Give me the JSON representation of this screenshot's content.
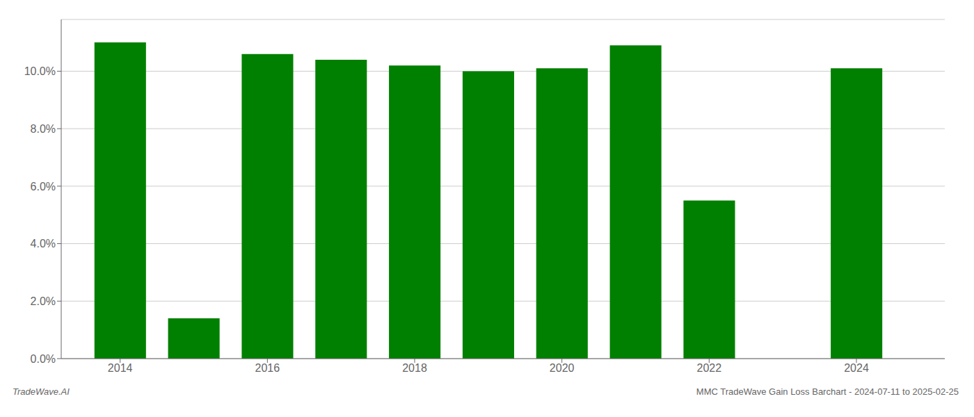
{
  "chart_data": {
    "type": "bar",
    "x": [
      2014,
      2015,
      2016,
      2017,
      2018,
      2019,
      2020,
      2021,
      2022,
      2023,
      2024
    ],
    "values": [
      0.11,
      0.014,
      0.106,
      0.104,
      0.102,
      0.1,
      0.101,
      0.109,
      0.055,
      null,
      0.101
    ],
    "color": "#008000",
    "xlim": [
      2013.2,
      2025.2
    ],
    "xticks": [
      2014,
      2016,
      2018,
      2020,
      2022,
      2024
    ],
    "ylim": [
      0,
      0.118
    ],
    "yticks": [
      {
        "value": 0,
        "label": "0.0%"
      },
      {
        "value": 0.02,
        "label": "2.0%"
      },
      {
        "value": 0.04,
        "label": "4.0%"
      },
      {
        "value": 0.06,
        "label": "6.0%"
      },
      {
        "value": 0.08,
        "label": "8.0%"
      },
      {
        "value": 0.1,
        "label": "10.0%"
      }
    ],
    "grid": true,
    "annotations": [
      "TradeWave.AI",
      "MMC TradeWave Gain Loss Barchart - 2024-07-11 to 2025-02-25"
    ]
  }
}
